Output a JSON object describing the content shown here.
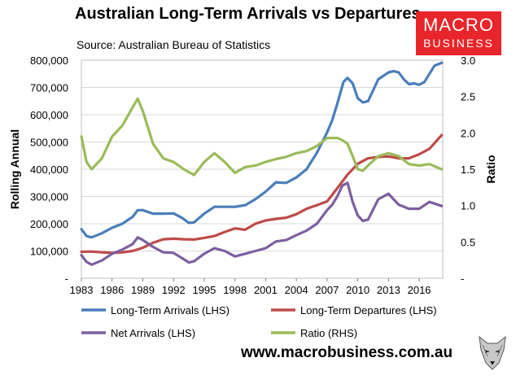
{
  "title": "Australian Long-Term Arrivals vs Departures",
  "source": "Source: Australian Bureau of Statistics",
  "logo": {
    "line1": "MACRO",
    "line2": "BUSINESS",
    "color": "#e8252a"
  },
  "website": "www.macrobusiness.com.au",
  "chart_data": {
    "type": "line",
    "ylabel": "Rolling Annual",
    "y2label": "Ratio",
    "xlim": [
      1983,
      2018.3
    ],
    "ylim": [
      0,
      800000
    ],
    "y2lim": [
      0,
      3.0
    ],
    "x_ticks": [
      "1983",
      "1986",
      "1989",
      "1992",
      "1995",
      "1998",
      "2001",
      "2004",
      "2007",
      "2010",
      "2013",
      "2016"
    ],
    "y_ticks": [
      "-",
      "100,000",
      "200,000",
      "300,000",
      "400,000",
      "500,000",
      "600,000",
      "700,000",
      "800,000"
    ],
    "y2_ticks": [
      "-",
      "0.5",
      "1.0",
      "1.5",
      "2.0",
      "2.5",
      "3.0"
    ],
    "grid": true,
    "legend": "bottom",
    "series": [
      {
        "name": "Long-Term Arrivals (LHS)",
        "axis": "left",
        "color": "#4a7ebb",
        "x": [
          1983,
          1983.5,
          1984,
          1985,
          1986,
          1987,
          1988,
          1988.5,
          1989,
          1990,
          1991,
          1992,
          1992.8,
          1993.5,
          1994,
          1995,
          1996,
          1997,
          1998,
          1999,
          2000,
          2001,
          2002,
          2003,
          2004,
          2005,
          2006,
          2007,
          2007.5,
          2008,
          2008.6,
          2009,
          2009.5,
          2010,
          2010.5,
          2011,
          2012,
          2013,
          2013.5,
          2014,
          2014.5,
          2015,
          2015.5,
          2016,
          2016.5,
          2017,
          2017.5,
          2018.2
        ],
        "y": [
          180000,
          155000,
          150000,
          165000,
          185000,
          200000,
          225000,
          250000,
          250000,
          237000,
          237000,
          238000,
          222000,
          203000,
          205000,
          237000,
          262000,
          262000,
          262000,
          268000,
          290000,
          318000,
          352000,
          350000,
          370000,
          400000,
          460000,
          535000,
          580000,
          640000,
          720000,
          735000,
          715000,
          660000,
          645000,
          650000,
          730000,
          755000,
          760000,
          755000,
          730000,
          712000,
          715000,
          710000,
          720000,
          750000,
          780000,
          790000
        ]
      },
      {
        "name": "Long-Term Departures (LHS)",
        "axis": "left",
        "color": "#be4b48",
        "x": [
          1983,
          1984,
          1985,
          1986,
          1987,
          1988,
          1989,
          1990,
          1991,
          1992,
          1993,
          1994,
          1995,
          1996,
          1997,
          1998,
          1999,
          2000,
          2001,
          2002,
          2003,
          2004,
          2005,
          2006,
          2007,
          2008,
          2009,
          2010,
          2011,
          2012,
          2013,
          2014,
          2015,
          2016,
          2017,
          2018.2
        ],
        "y": [
          97000,
          98000,
          95000,
          93000,
          95000,
          100000,
          112000,
          130000,
          143000,
          145000,
          143000,
          142000,
          148000,
          155000,
          170000,
          183000,
          178000,
          200000,
          212000,
          218000,
          222000,
          235000,
          255000,
          268000,
          282000,
          330000,
          380000,
          420000,
          440000,
          445000,
          447000,
          440000,
          440000,
          455000,
          475000,
          525000
        ]
      },
      {
        "name": "Net Arrivals (LHS)",
        "axis": "left",
        "color": "#7d60a0",
        "x": [
          1983,
          1983.5,
          1984,
          1985,
          1986,
          1987,
          1988,
          1988.5,
          1989,
          1990,
          1991,
          1992,
          1993,
          1993.5,
          1994,
          1995,
          1996,
          1997,
          1998,
          1999,
          2000,
          2001,
          2002,
          2003,
          2004,
          2005,
          2006,
          2007,
          2007.5,
          2008,
          2008.5,
          2009,
          2009.5,
          2010,
          2010.5,
          2011,
          2012,
          2013,
          2014,
          2015,
          2016,
          2017,
          2018.2
        ],
        "y": [
          85000,
          60000,
          50000,
          65000,
          90000,
          105000,
          125000,
          150000,
          140000,
          115000,
          95000,
          93000,
          70000,
          58000,
          62000,
          90000,
          110000,
          100000,
          80000,
          90000,
          100000,
          110000,
          135000,
          140000,
          158000,
          175000,
          200000,
          250000,
          270000,
          300000,
          340000,
          350000,
          280000,
          230000,
          210000,
          215000,
          290000,
          310000,
          270000,
          255000,
          255000,
          280000,
          265000
        ]
      },
      {
        "name": "Ratio (RHS)",
        "axis": "right",
        "color": "#9bbb59",
        "x": [
          1983,
          1983.5,
          1984,
          1985,
          1986,
          1987,
          1988,
          1988.5,
          1989,
          1990,
          1991,
          1992,
          1993,
          1994,
          1995,
          1996,
          1997,
          1998,
          1999,
          2000,
          2001,
          2002,
          2003,
          2004,
          2005,
          2006,
          2007,
          2008,
          2008.5,
          2009,
          2009.5,
          2010,
          2010.5,
          2011,
          2012,
          2013,
          2014,
          2015,
          2016,
          2017,
          2018.2
        ],
        "y": [
          1.95,
          1.6,
          1.5,
          1.65,
          1.95,
          2.1,
          2.35,
          2.47,
          2.3,
          1.85,
          1.65,
          1.6,
          1.5,
          1.42,
          1.6,
          1.72,
          1.6,
          1.45,
          1.53,
          1.55,
          1.6,
          1.64,
          1.67,
          1.72,
          1.75,
          1.82,
          1.93,
          1.93,
          1.9,
          1.85,
          1.68,
          1.5,
          1.48,
          1.55,
          1.68,
          1.72,
          1.68,
          1.57,
          1.55,
          1.57,
          1.5
        ]
      }
    ]
  }
}
